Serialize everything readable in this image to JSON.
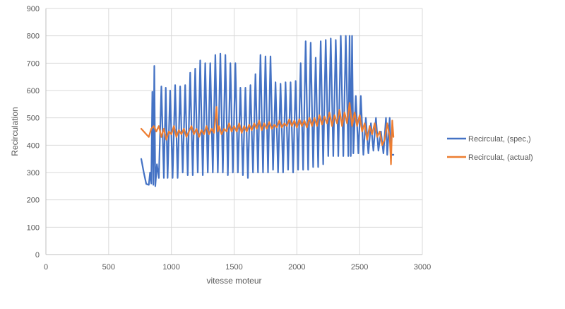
{
  "chart_data": {
    "type": "line",
    "title": "",
    "xlabel": "vitesse moteur",
    "ylabel": "Recirculation",
    "xlim": [
      0,
      3000
    ],
    "ylim": [
      0,
      900
    ],
    "x_ticks": [
      0,
      500,
      1000,
      1500,
      2000,
      2500,
      3000
    ],
    "y_ticks": [
      0,
      100,
      200,
      300,
      400,
      500,
      600,
      700,
      800,
      900
    ],
    "grid": true,
    "legend_position": "right",
    "series": [
      {
        "name": "Recirculat, (spec,)",
        "color": "#4472C4",
        "points": [
          [
            760,
            350
          ],
          [
            780,
            300
          ],
          [
            800,
            258
          ],
          [
            820,
            255
          ],
          [
            830,
            300
          ],
          [
            840,
            260
          ],
          [
            848,
            595
          ],
          [
            856,
            255
          ],
          [
            864,
            690
          ],
          [
            872,
            250
          ],
          [
            885,
            330
          ],
          [
            900,
            280
          ],
          [
            920,
            615
          ],
          [
            940,
            280
          ],
          [
            955,
            610
          ],
          [
            970,
            280
          ],
          [
            990,
            600
          ],
          [
            1010,
            280
          ],
          [
            1030,
            620
          ],
          [
            1050,
            280
          ],
          [
            1070,
            615
          ],
          [
            1090,
            300
          ],
          [
            1110,
            620
          ],
          [
            1130,
            290
          ],
          [
            1150,
            665
          ],
          [
            1170,
            290
          ],
          [
            1190,
            680
          ],
          [
            1210,
            300
          ],
          [
            1230,
            710
          ],
          [
            1250,
            290
          ],
          [
            1270,
            700
          ],
          [
            1290,
            300
          ],
          [
            1310,
            700
          ],
          [
            1330,
            300
          ],
          [
            1350,
            730
          ],
          [
            1370,
            300
          ],
          [
            1390,
            735
          ],
          [
            1410,
            300
          ],
          [
            1430,
            730
          ],
          [
            1450,
            290
          ],
          [
            1470,
            700
          ],
          [
            1490,
            300
          ],
          [
            1510,
            700
          ],
          [
            1530,
            300
          ],
          [
            1550,
            610
          ],
          [
            1570,
            290
          ],
          [
            1590,
            610
          ],
          [
            1610,
            280
          ],
          [
            1630,
            620
          ],
          [
            1650,
            300
          ],
          [
            1670,
            660
          ],
          [
            1690,
            300
          ],
          [
            1710,
            730
          ],
          [
            1730,
            300
          ],
          [
            1750,
            725
          ],
          [
            1770,
            300
          ],
          [
            1790,
            725
          ],
          [
            1810,
            310
          ],
          [
            1830,
            630
          ],
          [
            1850,
            300
          ],
          [
            1870,
            625
          ],
          [
            1890,
            300
          ],
          [
            1910,
            630
          ],
          [
            1930,
            310
          ],
          [
            1950,
            630
          ],
          [
            1970,
            300
          ],
          [
            1990,
            635
          ],
          [
            2010,
            310
          ],
          [
            2030,
            700
          ],
          [
            2050,
            310
          ],
          [
            2070,
            780
          ],
          [
            2090,
            310
          ],
          [
            2110,
            775
          ],
          [
            2130,
            320
          ],
          [
            2150,
            720
          ],
          [
            2170,
            320
          ],
          [
            2190,
            780
          ],
          [
            2210,
            330
          ],
          [
            2230,
            785
          ],
          [
            2250,
            360
          ],
          [
            2270,
            790
          ],
          [
            2290,
            360
          ],
          [
            2310,
            785
          ],
          [
            2330,
            360
          ],
          [
            2350,
            800
          ],
          [
            2370,
            360
          ],
          [
            2390,
            800
          ],
          [
            2410,
            360
          ],
          [
            2420,
            800
          ],
          [
            2430,
            360
          ],
          [
            2440,
            800
          ],
          [
            2450,
            370
          ],
          [
            2470,
            580
          ],
          [
            2490,
            370
          ],
          [
            2510,
            580
          ],
          [
            2530,
            365
          ],
          [
            2550,
            500
          ],
          [
            2570,
            370
          ],
          [
            2590,
            480
          ],
          [
            2610,
            380
          ],
          [
            2630,
            500
          ],
          [
            2650,
            380
          ],
          [
            2670,
            450
          ],
          [
            2690,
            370
          ],
          [
            2710,
            500
          ],
          [
            2720,
            365
          ],
          [
            2740,
            500
          ],
          [
            2750,
            365
          ],
          [
            2770,
            365
          ]
        ]
      },
      {
        "name": "Recirculat, (actual)",
        "color": "#ED7D31",
        "points": [
          [
            760,
            460
          ],
          [
            780,
            450
          ],
          [
            800,
            440
          ],
          [
            820,
            430
          ],
          [
            840,
            460
          ],
          [
            860,
            470
          ],
          [
            880,
            450
          ],
          [
            900,
            470
          ],
          [
            920,
            430
          ],
          [
            940,
            460
          ],
          [
            960,
            420
          ],
          [
            980,
            450
          ],
          [
            1000,
            440
          ],
          [
            1020,
            470
          ],
          [
            1040,
            430
          ],
          [
            1060,
            455
          ],
          [
            1080,
            440
          ],
          [
            1100,
            460
          ],
          [
            1120,
            430
          ],
          [
            1140,
            450
          ],
          [
            1160,
            470
          ],
          [
            1180,
            440
          ],
          [
            1200,
            460
          ],
          [
            1220,
            430
          ],
          [
            1240,
            455
          ],
          [
            1260,
            440
          ],
          [
            1280,
            470
          ],
          [
            1300,
            440
          ],
          [
            1320,
            460
          ],
          [
            1340,
            445
          ],
          [
            1360,
            540
          ],
          [
            1370,
            450
          ],
          [
            1380,
            470
          ],
          [
            1400,
            440
          ],
          [
            1420,
            460
          ],
          [
            1440,
            450
          ],
          [
            1460,
            480
          ],
          [
            1480,
            450
          ],
          [
            1500,
            470
          ],
          [
            1520,
            450
          ],
          [
            1540,
            480
          ],
          [
            1560,
            445
          ],
          [
            1580,
            470
          ],
          [
            1600,
            450
          ],
          [
            1620,
            475
          ],
          [
            1640,
            455
          ],
          [
            1660,
            480
          ],
          [
            1680,
            460
          ],
          [
            1700,
            490
          ],
          [
            1720,
            455
          ],
          [
            1740,
            480
          ],
          [
            1760,
            460
          ],
          [
            1780,
            485
          ],
          [
            1800,
            460
          ],
          [
            1820,
            475
          ],
          [
            1840,
            465
          ],
          [
            1860,
            490
          ],
          [
            1880,
            465
          ],
          [
            1900,
            480
          ],
          [
            1920,
            470
          ],
          [
            1940,
            495
          ],
          [
            1960,
            470
          ],
          [
            1980,
            490
          ],
          [
            2000,
            465
          ],
          [
            2020,
            495
          ],
          [
            2040,
            470
          ],
          [
            2060,
            490
          ],
          [
            2080,
            465
          ],
          [
            2100,
            500
          ],
          [
            2120,
            470
          ],
          [
            2140,
            500
          ],
          [
            2160,
            470
          ],
          [
            2180,
            510
          ],
          [
            2200,
            475
          ],
          [
            2220,
            505
          ],
          [
            2240,
            480
          ],
          [
            2260,
            520
          ],
          [
            2280,
            470
          ],
          [
            2300,
            510
          ],
          [
            2320,
            480
          ],
          [
            2340,
            530
          ],
          [
            2360,
            470
          ],
          [
            2380,
            520
          ],
          [
            2400,
            480
          ],
          [
            2420,
            555
          ],
          [
            2440,
            470
          ],
          [
            2460,
            520
          ],
          [
            2480,
            470
          ],
          [
            2500,
            510
          ],
          [
            2520,
            450
          ],
          [
            2540,
            480
          ],
          [
            2560,
            420
          ],
          [
            2580,
            470
          ],
          [
            2600,
            440
          ],
          [
            2620,
            480
          ],
          [
            2640,
            430
          ],
          [
            2660,
            450
          ],
          [
            2680,
            400
          ],
          [
            2700,
            420
          ],
          [
            2720,
            480
          ],
          [
            2740,
            430
          ],
          [
            2750,
            330
          ],
          [
            2760,
            490
          ],
          [
            2770,
            430
          ]
        ]
      }
    ]
  }
}
